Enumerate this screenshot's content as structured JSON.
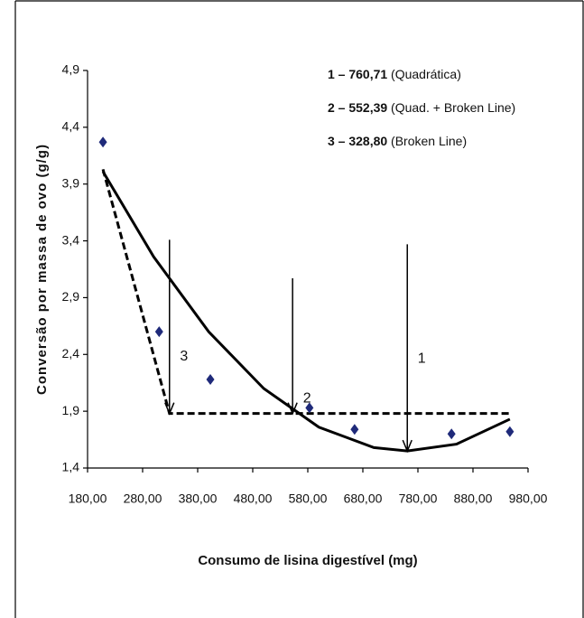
{
  "chart_data": {
    "type": "scatter",
    "x_label": "Consumo de lisina digestível (mg)",
    "y_label": "Conversão por massa de ovo (g/g)",
    "xlim": [
      180,
      980
    ],
    "xticks": [
      {
        "value": 180,
        "label": "180,00"
      },
      {
        "value": 280,
        "label": "280,00"
      },
      {
        "value": 380,
        "label": "380,00"
      },
      {
        "value": 480,
        "label": "480,00"
      },
      {
        "value": 580,
        "label": "580,00"
      },
      {
        "value": 680,
        "label": "680,00"
      },
      {
        "value": 780,
        "label": "780,00"
      },
      {
        "value": 880,
        "label": "880,00"
      },
      {
        "value": 980,
        "label": "980,00"
      }
    ],
    "ylim": [
      1.4,
      4.9
    ],
    "yticks": [
      {
        "value": 1.4,
        "label": "1,4"
      },
      {
        "value": 1.9,
        "label": "1,9"
      },
      {
        "value": 2.4,
        "label": "2,4"
      },
      {
        "value": 2.9,
        "label": "2,9"
      },
      {
        "value": 3.4,
        "label": "3,4"
      },
      {
        "value": 3.9,
        "label": "3,9"
      },
      {
        "value": 4.4,
        "label": "4,4"
      },
      {
        "value": 4.9,
        "label": "4,9"
      }
    ],
    "points": {
      "color": "#1f2a7a",
      "x": [
        208,
        310,
        403,
        583,
        665,
        841,
        947
      ],
      "y": [
        4.27,
        2.6,
        2.18,
        1.93,
        1.74,
        1.7,
        1.72
      ]
    },
    "curves": [
      {
        "style": "solid",
        "color": "#000000",
        "x": [
          208,
          300,
          400,
          500,
          600,
          700,
          760.71,
          850,
          947
        ],
        "y": [
          4.01,
          3.26,
          2.6,
          2.1,
          1.76,
          1.58,
          1.55,
          1.61,
          1.83
        ]
      },
      {
        "style": "dashed",
        "color": "#000000",
        "x": [
          208,
          328.8,
          947
        ],
        "y": [
          4.03,
          1.88,
          1.88
        ]
      }
    ],
    "arrows": [
      {
        "label": "3",
        "x": 328.8,
        "y_start": 3.41,
        "y_end": 1.88
      },
      {
        "label": "2",
        "x": 552.39,
        "y_start": 3.07,
        "y_end": 1.88
      },
      {
        "label": "1",
        "x": 760.71,
        "y_start": 3.37,
        "y_end": 1.55
      }
    ],
    "annotations": [
      {
        "bold": "1 – 760,71",
        "text": " (Quadrática)"
      },
      {
        "bold": "2 – 552,39",
        "text": " (Quad. + Broken Line)"
      },
      {
        "bold": "3 – 328,80",
        "text": " (Broken Line)"
      }
    ]
  }
}
